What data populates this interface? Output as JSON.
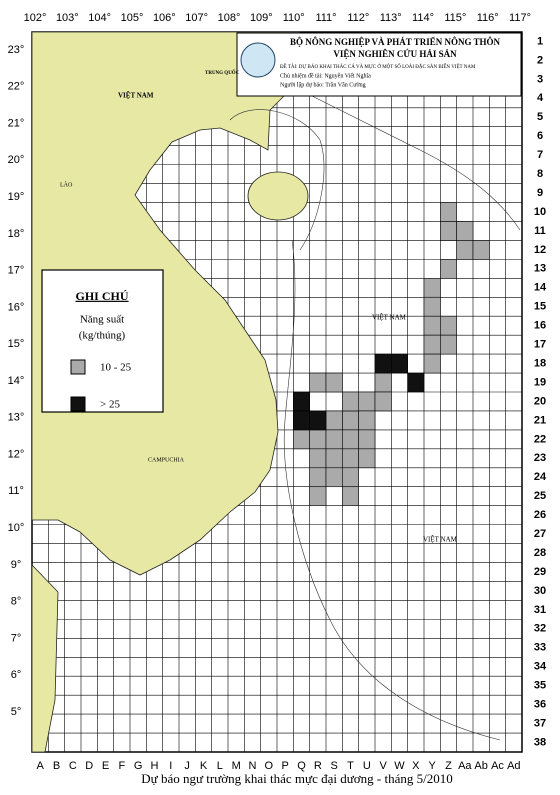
{
  "header": {
    "lines": [
      "BỘ NÔNG NGHIỆP VÀ PHÁT TRIỂN NÔNG THÔN",
      "VIỆN NGHIÊN CỨU HẢI SẢN"
    ],
    "details": [
      "ĐỀ TÀI: DỰ BÁO KHAI THÁC CÁ VÀ MỰC Ở MỘT SỐ LOÀI ĐẶC SẢN BIỂN VIỆT NAM",
      "Chủ nhiệm đề tài: Nguyễn Viết Nghĩa",
      "Người lập dự báo: Trần Văn Cường"
    ]
  },
  "axes": {
    "longitudes": [
      "102°",
      "103°",
      "104°",
      "105°",
      "106°",
      "107°",
      "108°",
      "109°",
      "110°",
      "111°",
      "112°",
      "113°",
      "114°",
      "115°",
      "116°",
      "117°"
    ],
    "latitudes": [
      "23°",
      "22°",
      "21°",
      "20°",
      "19°",
      "18°",
      "17°",
      "16°",
      "15°",
      "14°",
      "13°",
      "12°",
      "11°",
      "10°",
      "9°",
      "8°",
      "7°",
      "6°",
      "5°"
    ],
    "rows": [
      "1",
      "2",
      "3",
      "4",
      "5",
      "6",
      "7",
      "8",
      "9",
      "10",
      "11",
      "12",
      "13",
      "14",
      "15",
      "16",
      "17",
      "18",
      "19",
      "20",
      "21",
      "22",
      "23",
      "24",
      "25",
      "26",
      "27",
      "28",
      "29",
      "30",
      "31",
      "32",
      "33",
      "34",
      "35",
      "36",
      "37",
      "38"
    ],
    "columns": [
      "A",
      "B",
      "C",
      "D",
      "E",
      "F",
      "G",
      "H",
      "I",
      "J",
      "K",
      "L",
      "M",
      "N",
      "O",
      "P",
      "Q",
      "R",
      "S",
      "T",
      "U",
      "V",
      "W",
      "X",
      "Y",
      "Z",
      "Aa",
      "Ab",
      "Ac",
      "Ad"
    ]
  },
  "legend": {
    "title": "GHI CHÚ",
    "subtitle": "Năng suất",
    "unit": "(kg/thúng)",
    "items": [
      "10 - 25",
      "> 25"
    ]
  },
  "places": [
    "TRUNG QUỐC",
    "VIỆT NAM",
    "LÀO",
    "CAMPUCHIA",
    "VIỆT NAM",
    "VIỆT NAM"
  ],
  "caption": "Dự báo ngư trường khai thác mực đại dương - tháng 5/2010"
}
